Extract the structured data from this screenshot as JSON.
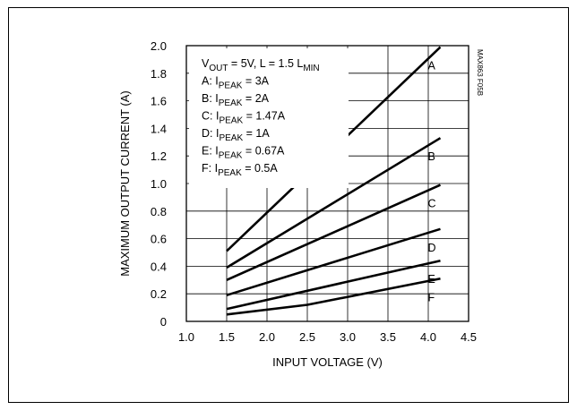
{
  "chart_data": {
    "type": "line",
    "code": "MAX863 F05B",
    "xlabel": "INPUT VOLTAGE (V)",
    "ylabel": "MAXIMUM OUTPUT CURRENT (A)",
    "xlim": [
      1.0,
      4.5
    ],
    "ylim": [
      0,
      2.0
    ],
    "x_ticks": [
      "1.0",
      "1.5",
      "2.0",
      "2.5",
      "3.0",
      "3.5",
      "4.0",
      "4.5"
    ],
    "y_ticks": [
      "0",
      "0.2",
      "0.4",
      "0.6",
      "0.8",
      "1.0",
      "1.2",
      "1.4",
      "1.6",
      "1.8",
      "2.0"
    ],
    "grid": true,
    "legend_placement": "top-left",
    "conditions": {
      "vout": {
        "base": "V",
        "sub": "OUT",
        "rest": " = 5V, L = 1.5 L",
        "sub2": "MIN"
      }
    },
    "legend": [
      {
        "prefix": "A: I",
        "sub": "PEAK",
        "value": " = 3A"
      },
      {
        "prefix": "B: I",
        "sub": "PEAK",
        "value": " = 2A"
      },
      {
        "prefix": "C: I",
        "sub": "PEAK",
        "value": " = 1.47A"
      },
      {
        "prefix": "D: I",
        "sub": "PEAK",
        "value": " = 1A"
      },
      {
        "prefix": "E: I",
        "sub": "PEAK",
        "value": " = 0.67A"
      },
      {
        "prefix": "F: I",
        "sub": "PEAK",
        "value": " = 0.5A"
      }
    ],
    "series": [
      {
        "name": "A",
        "x": [
          1.5,
          4.15
        ],
        "y": [
          0.51,
          1.99
        ]
      },
      {
        "name": "B",
        "x": [
          1.5,
          4.15
        ],
        "y": [
          0.39,
          1.33
        ]
      },
      {
        "name": "C",
        "x": [
          1.5,
          4.15
        ],
        "y": [
          0.3,
          0.99
        ]
      },
      {
        "name": "D",
        "x": [
          1.5,
          4.15
        ],
        "y": [
          0.19,
          0.67
        ]
      },
      {
        "name": "E",
        "x": [
          1.5,
          4.15
        ],
        "y": [
          0.09,
          0.44
        ]
      },
      {
        "name": "F",
        "x": [
          1.5,
          2.5,
          4.15
        ],
        "y": [
          0.05,
          0.12,
          0.31
        ]
      }
    ]
  }
}
